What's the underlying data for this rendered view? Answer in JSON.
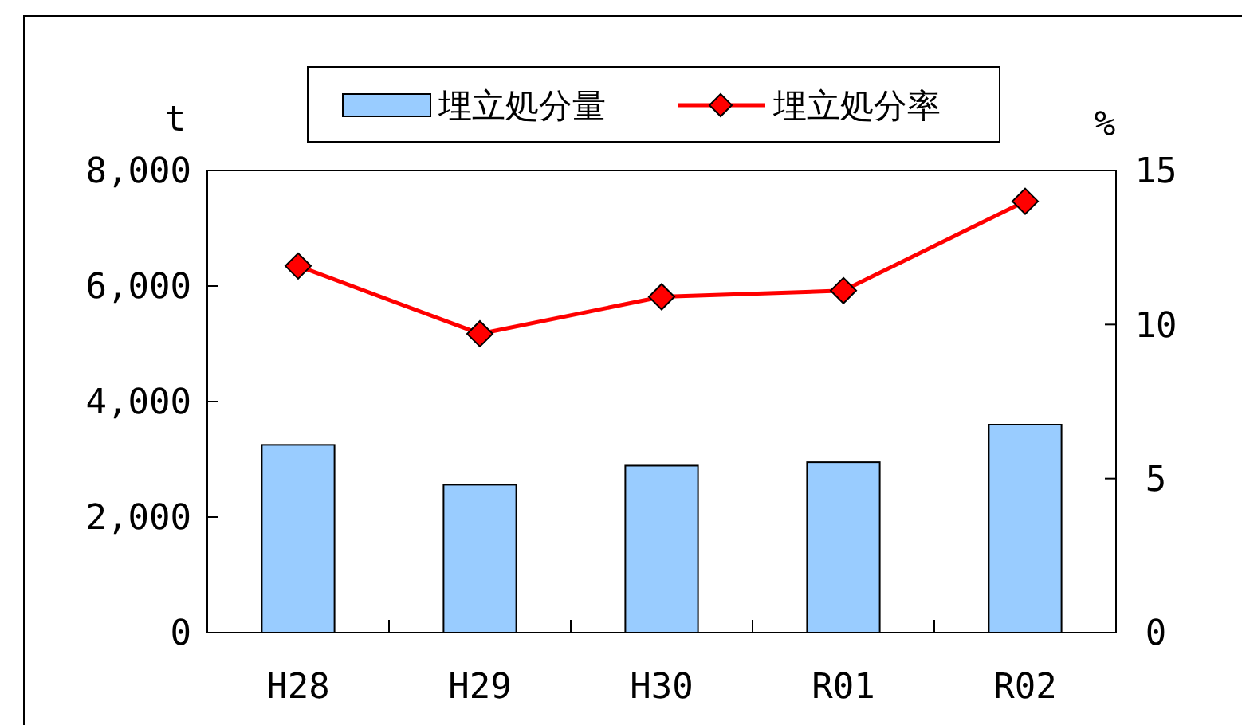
{
  "chart_data": {
    "type": "bar",
    "categories": [
      "H28",
      "H29",
      "H30",
      "R01",
      "R02"
    ],
    "ylabel": "t",
    "y2label": "%",
    "series": [
      {
        "name": "埋立処分量",
        "color": "#99ccff",
        "values": [
          3250,
          2560,
          2890,
          2950,
          3600
        ]
      },
      {
        "name": "埋立処分率",
        "type": "line",
        "axis": "y2",
        "color": "#ff0000",
        "marker": "diamond",
        "values": [
          11.9,
          9.7,
          10.9,
          11.1,
          14.0
        ]
      }
    ],
    "ylim": [
      0,
      8000
    ],
    "yticks": [
      {
        "value": 0,
        "label": "0"
      },
      {
        "value": 2000,
        "label": "2,000"
      },
      {
        "value": 4000,
        "label": "4,000"
      },
      {
        "value": 6000,
        "label": "6,000"
      },
      {
        "value": 8000,
        "label": "8,000"
      }
    ],
    "y2lim": [
      0,
      15
    ],
    "y2ticks": [
      0,
      5,
      10,
      15
    ],
    "legend": "top",
    "grid": false
  }
}
